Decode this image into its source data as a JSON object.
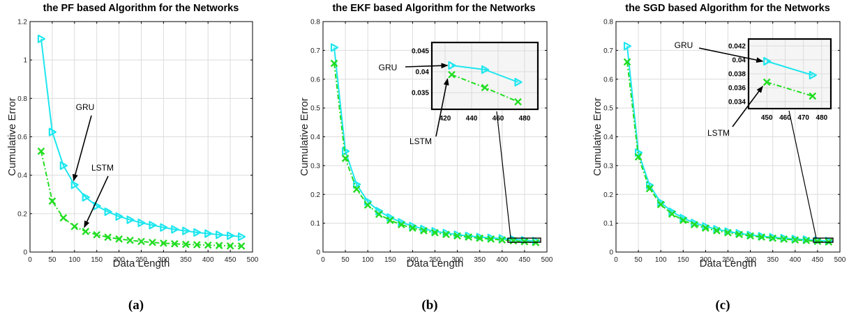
{
  "colors": {
    "gru": "#1ee6ee",
    "lstm": "#22dd22",
    "axis": "#000000",
    "grid": "#dcdcdc",
    "inset_bg": "#f5f5f5"
  },
  "chart_data": [
    {
      "type": "line",
      "panel_label": "(a)",
      "title": "the PF based Algorithm for the Networks",
      "xlabel": "Data Length",
      "ylabel": "Cumulative Error",
      "xlim": [
        0,
        500
      ],
      "ylim": [
        0,
        1.2
      ],
      "xticks": [
        0,
        50,
        100,
        150,
        200,
        250,
        300,
        350,
        400,
        450,
        500
      ],
      "yticks": [
        0,
        0.2,
        0.4,
        0.6,
        0.8,
        1,
        1.2
      ],
      "ytick_labels": [
        "0",
        "0.2",
        "0.4",
        "0.6",
        "0.8",
        "1",
        "1.2"
      ],
      "grid": true,
      "x": [
        25,
        50,
        75,
        100,
        125,
        150,
        175,
        200,
        225,
        250,
        275,
        300,
        325,
        350,
        375,
        400,
        425,
        450,
        475
      ],
      "series": [
        {
          "name": "GRU",
          "marker": "triangle-right",
          "line": "solid",
          "values": [
            1.11,
            0.625,
            0.45,
            0.35,
            0.285,
            0.24,
            0.21,
            0.185,
            0.168,
            0.152,
            0.14,
            0.128,
            0.118,
            0.11,
            0.102,
            0.096,
            0.09,
            0.085,
            0.08
          ]
        },
        {
          "name": "LSTM",
          "marker": "x",
          "line": "dashdot",
          "values": [
            0.525,
            0.265,
            0.178,
            0.133,
            0.107,
            0.09,
            0.077,
            0.068,
            0.061,
            0.055,
            0.05,
            0.046,
            0.043,
            0.04,
            0.038,
            0.036,
            0.034,
            0.032,
            0.031
          ]
        }
      ],
      "annotations": [
        {
          "text": "GRU",
          "series": "GRU",
          "point_x": 98
        },
        {
          "text": "LSTM",
          "series": "LSTM",
          "point_x": 122
        }
      ]
    },
    {
      "type": "line",
      "panel_label": "(b)",
      "title": "the EKF based Algorithm for the Networks",
      "xlabel": "Data Length",
      "ylabel": "Cumulative Error",
      "xlim": [
        0,
        500
      ],
      "ylim": [
        0,
        0.8
      ],
      "xticks": [
        0,
        50,
        100,
        150,
        200,
        250,
        300,
        350,
        400,
        450,
        500
      ],
      "yticks": [
        0,
        0.1,
        0.2,
        0.3,
        0.4,
        0.5,
        0.6,
        0.7,
        0.8
      ],
      "ytick_labels": [
        "0",
        "0.1",
        "0.2",
        "0.3",
        "0.4",
        "0.5",
        "0.6",
        "0.7",
        "0.8"
      ],
      "grid": true,
      "x": [
        25,
        50,
        75,
        100,
        125,
        150,
        175,
        200,
        225,
        250,
        275,
        300,
        325,
        350,
        375,
        400,
        425,
        450,
        475
      ],
      "series": [
        {
          "name": "GRU",
          "marker": "triangle-right",
          "line": "solid",
          "values": [
            0.71,
            0.35,
            0.235,
            0.175,
            0.142,
            0.12,
            0.103,
            0.09,
            0.08,
            0.072,
            0.066,
            0.06,
            0.056,
            0.052,
            0.049,
            0.047,
            0.044,
            0.041,
            0.038
          ]
        },
        {
          "name": "LSTM",
          "marker": "x",
          "line": "dashdot",
          "values": [
            0.655,
            0.325,
            0.218,
            0.163,
            0.131,
            0.11,
            0.095,
            0.083,
            0.074,
            0.067,
            0.061,
            0.056,
            0.052,
            0.048,
            0.045,
            0.042,
            0.039,
            0.036,
            0.033
          ]
        }
      ],
      "inset": {
        "xlim": [
          410,
          490
        ],
        "ylim": [
          0.031,
          0.047
        ],
        "xticks": [
          420,
          440,
          460,
          480
        ],
        "yticks": [
          0.035,
          0.04,
          0.045
        ],
        "ytick_labels": [
          "0.035",
          "0.04",
          "0.045"
        ],
        "zoom_box": {
          "x": [
            410,
            480
          ],
          "y": [
            0.031,
            0.046
          ]
        },
        "x": [
          425,
          450,
          475
        ],
        "series": [
          {
            "name": "GRU",
            "values": [
              0.0415,
              0.0405,
              0.0375
            ]
          },
          {
            "name": "LSTM",
            "values": [
              0.0393,
              0.0362,
              0.0328
            ]
          }
        ]
      },
      "annotations": [
        {
          "text": "GRU",
          "series": "GRU",
          "target": "inset"
        },
        {
          "text": "LSTM",
          "series": "LSTM",
          "target": "inset"
        }
      ]
    },
    {
      "type": "line",
      "panel_label": "(c)",
      "title": "the SGD based Algorithm for the Networks",
      "xlabel": "Data Length",
      "ylabel": "Cumulative Error",
      "xlim": [
        0,
        500
      ],
      "ylim": [
        0,
        0.8
      ],
      "xticks": [
        0,
        50,
        100,
        150,
        200,
        250,
        300,
        350,
        400,
        450,
        500
      ],
      "yticks": [
        0,
        0.1,
        0.2,
        0.3,
        0.4,
        0.5,
        0.6,
        0.7,
        0.8
      ],
      "ytick_labels": [
        "0",
        "0.1",
        "0.2",
        "0.3",
        "0.4",
        "0.5",
        "0.6",
        "0.7",
        "0.8"
      ],
      "grid": true,
      "x": [
        25,
        50,
        75,
        100,
        125,
        150,
        175,
        200,
        225,
        250,
        275,
        300,
        325,
        350,
        375,
        400,
        425,
        450,
        475
      ],
      "series": [
        {
          "name": "GRU",
          "marker": "triangle-right",
          "line": "solid",
          "values": [
            0.715,
            0.345,
            0.232,
            0.172,
            0.14,
            0.118,
            0.101,
            0.089,
            0.079,
            0.071,
            0.065,
            0.059,
            0.055,
            0.051,
            0.048,
            0.045,
            0.043,
            0.04,
            0.038
          ]
        },
        {
          "name": "LSTM",
          "marker": "x",
          "line": "dashdot",
          "values": [
            0.66,
            0.33,
            0.22,
            0.165,
            0.132,
            0.11,
            0.095,
            0.083,
            0.074,
            0.067,
            0.061,
            0.056,
            0.052,
            0.048,
            0.045,
            0.042,
            0.04,
            0.037,
            0.035
          ]
        }
      ],
      "inset": {
        "xlim": [
          440,
          485
        ],
        "ylim": [
          0.033,
          0.043
        ],
        "xticks": [
          450,
          460,
          470,
          480
        ],
        "yticks": [
          0.034,
          0.036,
          0.038,
          0.04,
          0.042
        ],
        "ytick_labels": [
          "0.034",
          "0.036",
          "0.038",
          "0.04",
          "0.042"
        ],
        "zoom_box": {
          "x": [
            440,
            480
          ],
          "y": [
            0.033,
            0.043
          ]
        },
        "x": [
          450,
          475
        ],
        "series": [
          {
            "name": "GRU",
            "values": [
              0.0398,
              0.0378
            ]
          },
          {
            "name": "LSTM",
            "values": [
              0.0368,
              0.0348
            ]
          }
        ]
      },
      "annotations": [
        {
          "text": "GRU",
          "series": "GRU",
          "target": "inset"
        },
        {
          "text": "LSTM",
          "series": "LSTM",
          "target": "inset"
        }
      ]
    }
  ]
}
